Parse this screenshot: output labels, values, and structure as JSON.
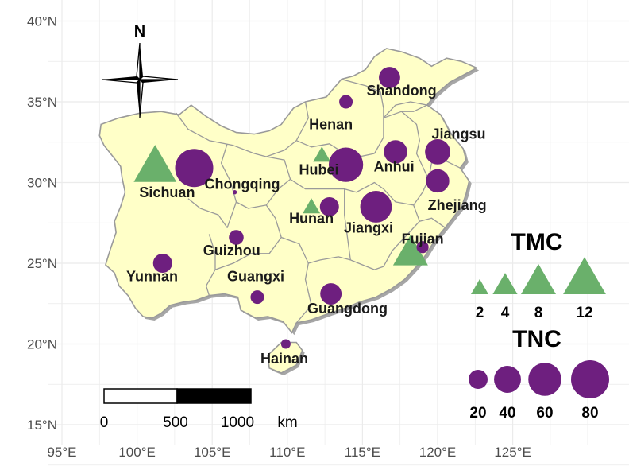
{
  "axes": {
    "x_ticks": [
      {
        "value": 95,
        "label": "95°E"
      },
      {
        "value": 100,
        "label": "100°E"
      },
      {
        "value": 105,
        "label": "105°E"
      },
      {
        "value": 110,
        "label": "110°E"
      },
      {
        "value": 115,
        "label": "115°E"
      },
      {
        "value": 120,
        "label": "120°E"
      },
      {
        "value": 125,
        "label": "125°E"
      }
    ],
    "y_ticks": [
      {
        "value": 15,
        "label": "15°N"
      },
      {
        "value": 20,
        "label": "20°N"
      },
      {
        "value": 25,
        "label": "25°N"
      },
      {
        "value": 30,
        "label": "30°N"
      },
      {
        "value": 35,
        "label": "35°N"
      },
      {
        "value": 40,
        "label": "40°N"
      }
    ],
    "x_range": [
      94.5,
      131.5
    ],
    "y_range": [
      14.5,
      40.8
    ]
  },
  "colors": {
    "land": "#ffffc8",
    "border": "#9a9a9a",
    "tnc": "#6e1f7f",
    "tmc": "#6ab06b",
    "grid": "#ebebeb"
  },
  "provinces": [
    {
      "name": "Sichuan",
      "label_lon": 102.0,
      "label_lat": 29.1,
      "tnc": 80,
      "tmc": 12,
      "tnc_lon": 103.8,
      "tnc_lat": 30.9,
      "tmc_lon": 101.2,
      "tmc_lat": 30.8
    },
    {
      "name": "Chongqing",
      "label_lon": 107.0,
      "label_lat": 29.6,
      "tnc": 1,
      "tnc_lon": 106.5,
      "tnc_lat": 29.4
    },
    {
      "name": "Hubei",
      "label_lon": 112.1,
      "label_lat": 30.5,
      "tnc": 65,
      "tmc": 2,
      "tnc_lon": 113.9,
      "tnc_lat": 31.1,
      "tmc_lon": 112.3,
      "tmc_lat": 31.6
    },
    {
      "name": "Henan",
      "label_lon": 112.9,
      "label_lat": 33.3,
      "tnc": 10,
      "tnc_lon": 113.9,
      "tnc_lat": 35.0
    },
    {
      "name": "Shandong",
      "label_lon": 117.6,
      "label_lat": 35.4,
      "tnc": 25,
      "tnc_lon": 116.8,
      "tnc_lat": 36.5
    },
    {
      "name": "Anhui",
      "label_lon": 117.1,
      "label_lat": 30.7,
      "tnc": 30,
      "tnc_lon": 117.2,
      "tnc_lat": 31.9
    },
    {
      "name": "Jiangsu",
      "label_lon": 121.4,
      "label_lat": 32.7,
      "tnc": 35,
      "tnc_lon": 120.0,
      "tnc_lat": 31.9
    },
    {
      "name": "Zhejiang",
      "label_lon": 121.3,
      "label_lat": 28.3,
      "tnc": 30,
      "tnc_lon": 120.0,
      "tnc_lat": 30.1
    },
    {
      "name": "Hunan",
      "label_lon": 111.6,
      "label_lat": 27.5,
      "tnc": 20,
      "tmc": 2,
      "tnc_lon": 112.8,
      "tnc_lat": 28.5,
      "tmc_lon": 111.6,
      "tmc_lat": 28.4
    },
    {
      "name": "Jiangxi",
      "label_lon": 115.4,
      "label_lat": 26.9,
      "tnc": 55,
      "tnc_lon": 115.9,
      "tnc_lat": 28.5
    },
    {
      "name": "Fujian",
      "label_lon": 119.0,
      "label_lat": 26.2,
      "tnc": 8,
      "tmc": 8,
      "tnc_lon": 119.0,
      "tnc_lat": 26.0,
      "tmc_lon": 118.2,
      "tmc_lat": 25.5
    },
    {
      "name": "Guizhou",
      "label_lon": 106.3,
      "label_lat": 25.5,
      "tnc": 12,
      "tnc_lon": 106.6,
      "tnc_lat": 26.6
    },
    {
      "name": "Yunnan",
      "label_lon": 101.0,
      "label_lat": 23.9,
      "tnc": 20,
      "tnc_lon": 101.7,
      "tnc_lat": 25.0
    },
    {
      "name": "Guangxi",
      "label_lon": 107.9,
      "label_lat": 23.9,
      "tnc": 10,
      "tnc_lon": 108.0,
      "tnc_lat": 22.9
    },
    {
      "name": "Guangdong",
      "label_lon": 114.0,
      "label_lat": 21.9,
      "tnc": 25,
      "tnc_lon": 112.9,
      "tnc_lat": 23.1
    },
    {
      "name": "Hainan",
      "label_lon": 109.8,
      "label_lat": 18.8,
      "tnc": 5,
      "tnc_lon": 109.9,
      "tnc_lat": 20.0
    }
  ],
  "legend": {
    "tmc": {
      "title": "TMC",
      "values": [
        2,
        4,
        8,
        12
      ]
    },
    "tnc": {
      "title": "TNC",
      "values": [
        20,
        40,
        60,
        80
      ]
    }
  },
  "north_arrow": {
    "label": "N"
  },
  "scale_bar": {
    "labels": [
      "0",
      "500",
      "1000"
    ],
    "unit": "km"
  }
}
